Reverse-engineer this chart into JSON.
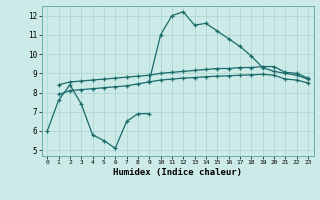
{
  "title": "",
  "xlabel": "Humidex (Indice chaleur)",
  "bg_color": "#cceae7",
  "line_color": "#1a6b6b",
  "grid_color": "#aad4d0",
  "xlim": [
    -0.5,
    23.5
  ],
  "ylim": [
    4.7,
    12.5
  ],
  "yticks": [
    5,
    6,
    7,
    8,
    9,
    10,
    11,
    12
  ],
  "xticks": [
    0,
    1,
    2,
    3,
    4,
    5,
    6,
    7,
    8,
    9,
    10,
    11,
    12,
    13,
    14,
    15,
    16,
    17,
    18,
    19,
    20,
    21,
    22,
    23
  ],
  "line1_x": [
    0,
    1,
    2,
    3,
    4,
    5,
    6,
    7,
    8,
    9
  ],
  "line1_y": [
    6.0,
    7.6,
    8.4,
    7.4,
    5.8,
    5.5,
    5.1,
    6.5,
    6.9,
    6.9
  ],
  "line2_x": [
    9,
    10,
    11,
    12,
    13,
    14,
    15,
    16,
    17,
    18,
    19,
    20,
    21,
    22,
    23
  ],
  "line2_y": [
    8.6,
    11.0,
    12.0,
    12.2,
    11.5,
    11.6,
    11.2,
    10.8,
    10.4,
    9.9,
    9.3,
    9.1,
    9.0,
    8.9,
    8.7
  ],
  "line3_x": [
    1,
    2,
    3,
    4,
    5,
    6,
    7,
    8,
    9,
    10,
    11,
    12,
    13,
    14,
    15,
    16,
    17,
    18,
    19,
    20,
    21,
    22,
    23
  ],
  "line3_y": [
    8.4,
    8.55,
    8.6,
    8.65,
    8.7,
    8.75,
    8.8,
    8.85,
    8.9,
    9.0,
    9.05,
    9.1,
    9.15,
    9.2,
    9.25,
    9.25,
    9.3,
    9.3,
    9.35,
    9.35,
    9.05,
    9.0,
    8.75
  ],
  "line4_x": [
    1,
    2,
    3,
    4,
    5,
    6,
    7,
    8,
    9,
    10,
    11,
    12,
    13,
    14,
    15,
    16,
    17,
    18,
    19,
    20,
    21,
    22,
    23
  ],
  "line4_y": [
    7.9,
    8.1,
    8.15,
    8.2,
    8.25,
    8.3,
    8.35,
    8.45,
    8.55,
    8.65,
    8.7,
    8.75,
    8.78,
    8.82,
    8.85,
    8.87,
    8.9,
    8.92,
    8.95,
    8.9,
    8.7,
    8.65,
    8.5
  ]
}
